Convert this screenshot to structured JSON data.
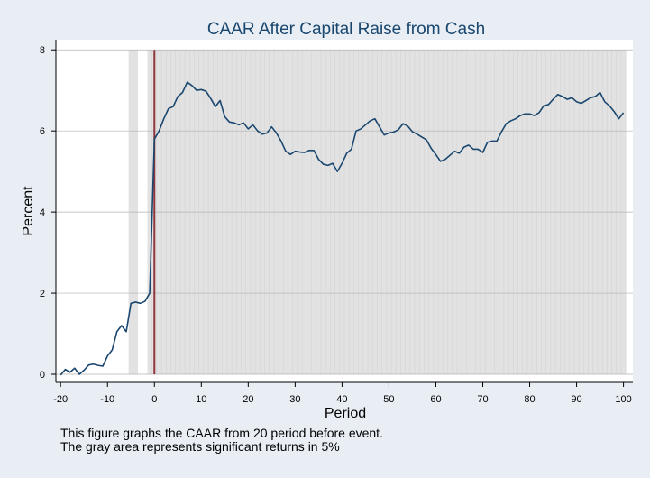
{
  "chart_data": {
    "type": "line",
    "title": "CAAR After Capital Raise from Cash",
    "xlabel": "Period",
    "ylabel": "Percent",
    "xlim": [
      -21,
      102
    ],
    "ylim": [
      -0.2,
      8.25
    ],
    "xticks": [
      -20,
      -10,
      0,
      10,
      20,
      30,
      40,
      50,
      60,
      70,
      80,
      90,
      100
    ],
    "yticks": [
      0,
      2,
      4,
      6,
      8
    ],
    "event_line_x": 0,
    "significant_periods": [
      -5,
      -4,
      -1,
      [
        0,
        100
      ]
    ],
    "series": [
      {
        "x": [
          -20,
          -19,
          -18,
          -17,
          -16,
          -15,
          -14,
          -13,
          -12,
          -11,
          -10,
          -9,
          -8,
          -7,
          -6,
          -5,
          -4,
          -3,
          -2,
          -1,
          0,
          1,
          2,
          3,
          4,
          5,
          6,
          7,
          8,
          9,
          10,
          11,
          12,
          13,
          14,
          15,
          16,
          17,
          18,
          19,
          20,
          21,
          22,
          23,
          24,
          25,
          26,
          27,
          28,
          29,
          30,
          31,
          32,
          33,
          34,
          35,
          36,
          37,
          38,
          39,
          40,
          41,
          42,
          43,
          44,
          45,
          46,
          47,
          48,
          49,
          50,
          51,
          52,
          53,
          54,
          55,
          56,
          57,
          58,
          59,
          60,
          61,
          62,
          63,
          64,
          65,
          66,
          67,
          68,
          69,
          70,
          71,
          72,
          73,
          74,
          75,
          76,
          77,
          78,
          79,
          80,
          81,
          82,
          83,
          84,
          85,
          86,
          87,
          88,
          89,
          90,
          91,
          92,
          93,
          94,
          95,
          96,
          97,
          98,
          99,
          100
        ],
        "values": [
          -0.02,
          0.12,
          0.05,
          0.15,
          0.0,
          0.1,
          0.23,
          0.25,
          0.22,
          0.2,
          0.45,
          0.6,
          1.05,
          1.2,
          1.05,
          1.75,
          1.78,
          1.75,
          1.8,
          2.0,
          5.8,
          6.0,
          6.3,
          6.55,
          6.6,
          6.85,
          6.95,
          7.2,
          7.12,
          7.0,
          7.02,
          6.98,
          6.8,
          6.6,
          6.75,
          6.35,
          6.22,
          6.2,
          6.15,
          6.2,
          6.05,
          6.15,
          6.0,
          5.92,
          5.95,
          6.1,
          5.95,
          5.75,
          5.5,
          5.42,
          5.5,
          5.48,
          5.47,
          5.52,
          5.52,
          5.3,
          5.18,
          5.15,
          5.2,
          5.0,
          5.2,
          5.45,
          5.55,
          6.0,
          6.05,
          6.15,
          6.25,
          6.3,
          6.1,
          5.9,
          5.95,
          5.97,
          6.03,
          6.18,
          6.12,
          5.98,
          5.92,
          5.85,
          5.78,
          5.57,
          5.42,
          5.25,
          5.3,
          5.4,
          5.5,
          5.45,
          5.6,
          5.65,
          5.55,
          5.55,
          5.47,
          5.72,
          5.75,
          5.75,
          5.98,
          6.18,
          6.25,
          6.3,
          6.38,
          6.42,
          6.42,
          6.38,
          6.45,
          6.62,
          6.65,
          6.78,
          6.9,
          6.85,
          6.78,
          6.82,
          6.72,
          6.68,
          6.75,
          6.82,
          6.85,
          6.95,
          6.72,
          6.62,
          6.48,
          6.3,
          6.45
        ]
      }
    ],
    "colors": {
      "line": "#1a476f",
      "event_line": "#90353b",
      "shade": "#e2e2e2",
      "grid": "#b3b3b3",
      "plot_bg": "#ffffff",
      "outer_bg": "#e8eef4"
    }
  },
  "notes": [
    "This figure graphs the CAAR from 20 period before event.",
    "The gray area represents significant returns in 5%"
  ]
}
